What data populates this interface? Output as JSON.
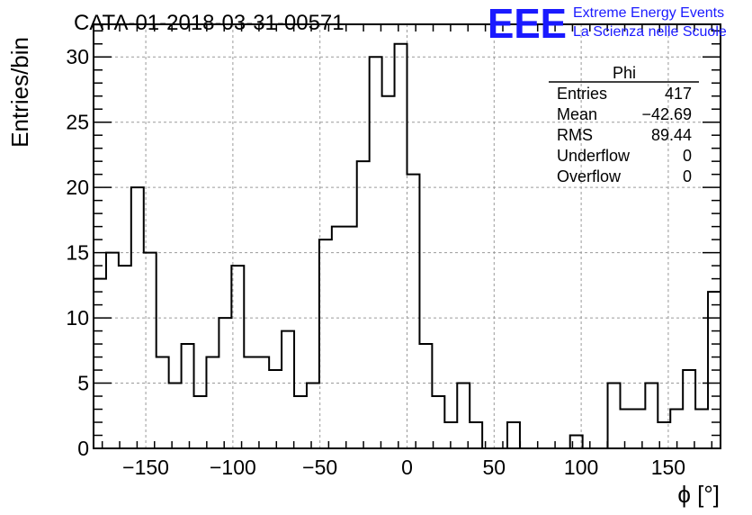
{
  "header": {
    "run_title": "CATA-01-2018-03-31-00571",
    "logo": {
      "mark": "EEE",
      "line1": "Extreme Energy Events",
      "line2": "La Scienza nelle Scuole",
      "color": "#1a1aff"
    }
  },
  "stats_box": {
    "title": "Phi",
    "rows": [
      {
        "label": "Entries",
        "value": "417"
      },
      {
        "label": "Mean",
        "value": "−42.69"
      },
      {
        "label": "RMS",
        "value": "89.44"
      },
      {
        "label": "Underflow",
        "value": "0"
      },
      {
        "label": "Overflow",
        "value": "0"
      }
    ]
  },
  "chart_data": {
    "type": "bar",
    "style": "step-histogram",
    "xlabel": "ϕ [°]",
    "ylabel": "Entries/bin",
    "xlim": [
      -180,
      180
    ],
    "ylim": [
      0,
      32.5
    ],
    "grid": true,
    "bin_width": 7.2,
    "bin_low_edges": [
      -180,
      -172.8,
      -165.6,
      -158.4,
      -151.2,
      -144,
      -136.8,
      -129.6,
      -122.4,
      -115.2,
      -108,
      -100.8,
      -93.6,
      -86.4,
      -79.2,
      -72,
      -64.8,
      -57.6,
      -50.4,
      -43.2,
      -36,
      -28.8,
      -21.6,
      -14.4,
      -7.2,
      0,
      7.2,
      14.4,
      21.6,
      28.8,
      36,
      43.2,
      50.4,
      57.6,
      64.8,
      72,
      79.2,
      86.4,
      93.6,
      100.8,
      108,
      115.2,
      122.4,
      129.6,
      136.8,
      144,
      151.2,
      158.4,
      165.6,
      172.8
    ],
    "values": [
      13,
      15,
      14,
      20,
      15,
      7,
      5,
      8,
      4,
      7,
      10,
      14,
      7,
      7,
      6,
      9,
      4,
      5,
      16,
      17,
      17,
      22,
      30,
      27,
      31,
      21,
      8,
      4,
      2,
      5,
      2,
      0,
      0,
      2,
      0,
      0,
      0,
      0,
      1,
      0,
      0,
      5,
      3,
      3,
      5,
      2,
      3,
      6,
      3,
      12
    ],
    "x_ticks": [
      -150,
      -100,
      -50,
      0,
      50,
      100,
      150
    ],
    "x_tick_labels": [
      "−150",
      "−100",
      "−50",
      "0",
      "50",
      "100",
      "150"
    ],
    "y_ticks": [
      0,
      5,
      10,
      15,
      20,
      25,
      30
    ],
    "y_tick_labels": [
      "0",
      "5",
      "10",
      "15",
      "20",
      "25",
      "30"
    ],
    "line_color": "#000000",
    "grid_color": "#9a9a9a"
  }
}
